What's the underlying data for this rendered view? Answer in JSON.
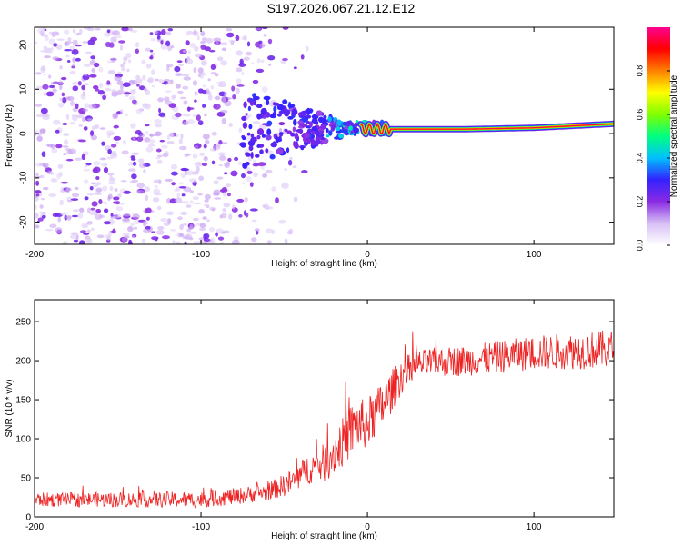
{
  "figure_title": "S197.2026.067.21.12.E12",
  "colors": {
    "snr_line": "#ee2222",
    "axis": "#000000",
    "background": "#ffffff"
  },
  "chart_data": [
    {
      "id": "spectrogram",
      "type": "heatmap",
      "title": "",
      "xlabel": "Height of straight line (km)",
      "ylabel": "Frequency (Hz)",
      "xlim": [
        -200,
        148
      ],
      "ylim": [
        -25,
        24
      ],
      "x_ticks": [
        -200,
        -100,
        0,
        100
      ],
      "x_tick_labels": [
        "-200",
        "-100",
        "0",
        "100"
      ],
      "y_ticks": [
        -20,
        -10,
        0,
        10,
        20
      ],
      "y_tick_labels": [
        "-20",
        "-10",
        "0",
        "10",
        "20"
      ],
      "description_of_signal": {
        "noise_region_km": [
          -200,
          -35
        ],
        "noise_level": 0.15,
        "transition_region_km": [
          -75,
          10
        ],
        "signal_start_km": 10,
        "signal_frequency_hz": [
          [
            10,
            1.0
          ],
          [
            60,
            1.0
          ],
          [
            100,
            1.3
          ],
          [
            148,
            2.2
          ]
        ],
        "signal_peak_amplitude": 0.95
      },
      "colorbar": {
        "label": "Normalized spectral amplitude",
        "range": [
          0.0,
          1.0
        ],
        "ticks": [
          0.0,
          0.2,
          0.4,
          0.6,
          0.8
        ],
        "tick_labels": [
          "0.0",
          "0.2",
          "0.4",
          "0.6",
          "0.8"
        ],
        "colormap": [
          "#ffffff",
          "#d7c0f5",
          "#8a2be2",
          "#3322ff",
          "#00c0ff",
          "#00ff80",
          "#80ff00",
          "#ffff00",
          "#ff8000",
          "#ff0000",
          "#ff0090"
        ]
      }
    },
    {
      "id": "snr",
      "type": "line",
      "title": "",
      "xlabel": "Height of straight line (km)",
      "ylabel": "SNR (10 * v/v)",
      "xlim": [
        -200,
        148
      ],
      "ylim": [
        0,
        278
      ],
      "x_ticks": [
        -200,
        -100,
        0,
        100
      ],
      "x_tick_labels": [
        "-200",
        "-100",
        "0",
        "100"
      ],
      "y_ticks": [
        0,
        50,
        100,
        150,
        200,
        250
      ],
      "y_tick_labels": [
        "0",
        "50",
        "100",
        "150",
        "200",
        "250"
      ],
      "series": [
        {
          "name": "SNR",
          "trend_x": [
            -200,
            -150,
            -100,
            -80,
            -60,
            -45,
            -35,
            -25,
            -15,
            -8,
            0,
            10,
            20,
            30,
            40,
            60,
            80,
            100,
            120,
            148
          ],
          "trend_y": [
            22,
            22,
            22,
            26,
            32,
            45,
            62,
            70,
            95,
            115,
            120,
            145,
            180,
            195,
            198,
            200,
            205,
            210,
            212,
            215
          ],
          "noise_amplitude": [
            [
              -200,
              9
            ],
            [
              -60,
              11
            ],
            [
              -30,
              22
            ],
            [
              -10,
              35
            ],
            [
              10,
              30
            ],
            [
              30,
              18
            ],
            [
              148,
              25
            ]
          ]
        }
      ]
    }
  ]
}
